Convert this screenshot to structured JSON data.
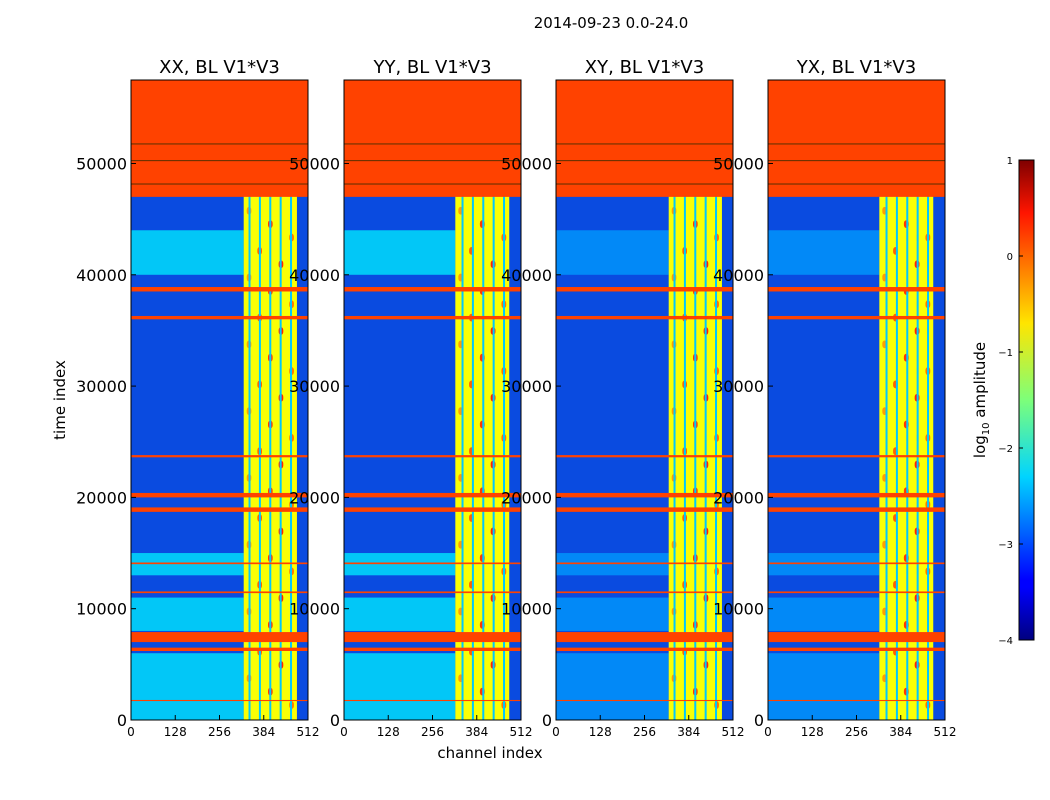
{
  "chart_data": {
    "type": "heatmap",
    "title": "2014-09-23 0.0-24.0",
    "xlabel": "channel index",
    "ylabel": "time index",
    "xlim": [
      0,
      512
    ],
    "ylim": [
      0,
      57500
    ],
    "x_ticks": [
      0,
      128,
      256,
      384,
      512
    ],
    "y_ticks": [
      0,
      10000,
      20000,
      30000,
      40000,
      50000
    ],
    "colorbar": {
      "label": "log10 amplitude",
      "label_base": "log",
      "label_sub": "10",
      "label_rest": " amplitude",
      "range": [
        -4,
        1
      ],
      "ticks": [
        1,
        0,
        -1,
        -2,
        -3,
        -4
      ],
      "tick_labels": [
        "1",
        "0",
        "−1",
        "−2",
        "−3",
        "−4"
      ]
    },
    "panels": [
      {
        "title": "XX, BL V1*V3",
        "band_start_channel": 326,
        "band_end_channel": 480,
        "left_light_level": -2.2
      },
      {
        "title": "YY, BL V1*V3",
        "band_start_channel": 322,
        "band_end_channel": 478,
        "left_light_level": -2.2
      },
      {
        "title": "XY, BL V1*V3",
        "band_start_channel": 326,
        "band_end_channel": 480,
        "left_light_level": -2.6
      },
      {
        "title": "YX, BL V1*V3",
        "band_start_channel": 322,
        "band_end_channel": 478,
        "left_light_level": -2.6
      }
    ],
    "flagged_rows": [
      {
        "from": 47000,
        "to": 57500,
        "level": 0.05
      },
      {
        "from": 38500,
        "to": 38900,
        "level": 0.05
      },
      {
        "from": 36000,
        "to": 36300,
        "level": 0.05
      },
      {
        "from": 23600,
        "to": 23800,
        "level": 0.05
      },
      {
        "from": 20000,
        "to": 20400,
        "level": 0.05
      },
      {
        "from": 18700,
        "to": 19100,
        "level": 0.05
      },
      {
        "from": 14000,
        "to": 14150,
        "level": 0.05
      },
      {
        "from": 11400,
        "to": 11550,
        "level": 0.05
      },
      {
        "from": 7000,
        "to": 7900,
        "level": 0.05
      },
      {
        "from": 6200,
        "to": 6500,
        "level": 0.05
      },
      {
        "from": 1700,
        "to": 1800,
        "level": 0.05
      }
    ],
    "stripe_columns": [
      340,
      370,
      400,
      430,
      460
    ]
  },
  "figure": {
    "background": "#ffffff",
    "flag_color": "#ff6a00",
    "background_color": "#0a4be0"
  }
}
